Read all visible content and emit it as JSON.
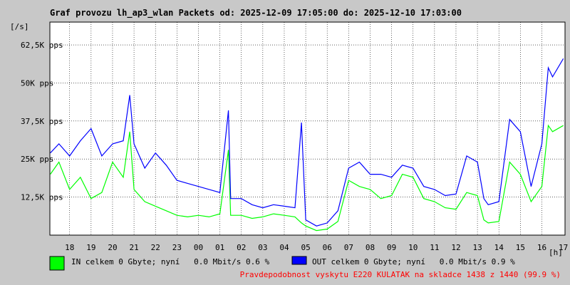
{
  "chart_data": {
    "type": "line",
    "title": "Graf provozu lh_ap3_wlan Packets od: 2025-12-09 17:05:00 do: 2025-12-10 17:03:00",
    "ylabel": "[/s]",
    "xlabel": "[h]",
    "ylim": [
      0,
      70000
    ],
    "grid": true,
    "y_ticks": [
      {
        "value": 12500,
        "label": "12,5K pps"
      },
      {
        "value": 25000,
        "label": "25K pps"
      },
      {
        "value": 37500,
        "label": "37,5K pps"
      },
      {
        "value": 50000,
        "label": "50K pps"
      },
      {
        "value": 62500,
        "label": "62,5K pps"
      }
    ],
    "x_hours": [
      "18",
      "19",
      "20",
      "21",
      "22",
      "23",
      "00",
      "01",
      "02",
      "03",
      "04",
      "05",
      "06",
      "07",
      "08",
      "09",
      "10",
      "11",
      "12",
      "13",
      "14",
      "15",
      "16",
      "17"
    ],
    "series": [
      {
        "name": "IN",
        "color": "#00ff00",
        "x": [
          17.1,
          17.5,
          18.0,
          18.5,
          19.0,
          19.5,
          20.0,
          20.5,
          20.8,
          21.0,
          21.5,
          22.0,
          22.5,
          23.0,
          23.5,
          0.0,
          0.5,
          1.0,
          1.4,
          1.5,
          2.0,
          2.5,
          3.0,
          3.5,
          4.0,
          4.5,
          4.8,
          5.0,
          5.5,
          6.0,
          6.5,
          7.0,
          7.5,
          8.0,
          8.5,
          9.0,
          9.5,
          10.0,
          10.5,
          11.0,
          11.5,
          12.0,
          12.5,
          13.0,
          13.3,
          13.5,
          14.0,
          14.5,
          15.0,
          15.5,
          16.0,
          16.3,
          16.5,
          17.0
        ],
        "y": [
          20000,
          24000,
          15000,
          19000,
          12000,
          14000,
          24000,
          19000,
          34000,
          15000,
          11000,
          9500,
          8000,
          6500,
          6000,
          6500,
          6000,
          7000,
          28000,
          6500,
          6500,
          5500,
          6000,
          7000,
          6500,
          6000,
          4000,
          3000,
          1500,
          2000,
          4500,
          18000,
          16000,
          15000,
          12000,
          13000,
          20000,
          19000,
          12000,
          11000,
          9000,
          8500,
          14000,
          13000,
          5000,
          4000,
          4500,
          24000,
          20000,
          11000,
          16000,
          36000,
          34000,
          36000
        ]
      },
      {
        "name": "OUT",
        "color": "#0000ff",
        "x": [
          17.1,
          17.5,
          18.0,
          18.5,
          19.0,
          19.5,
          20.0,
          20.5,
          20.8,
          21.0,
          21.5,
          22.0,
          22.5,
          23.0,
          23.5,
          0.0,
          0.5,
          1.0,
          1.4,
          1.5,
          2.0,
          2.5,
          3.0,
          3.5,
          4.0,
          4.5,
          4.8,
          5.0,
          5.5,
          6.0,
          6.5,
          7.0,
          7.5,
          8.0,
          8.5,
          9.0,
          9.5,
          10.0,
          10.5,
          11.0,
          11.5,
          12.0,
          12.5,
          13.0,
          13.3,
          13.5,
          14.0,
          14.5,
          15.0,
          15.5,
          16.0,
          16.3,
          16.5,
          17.0
        ],
        "y": [
          27000,
          30000,
          26000,
          31000,
          35000,
          26000,
          30000,
          31000,
          46000,
          30000,
          22000,
          27000,
          23000,
          18000,
          17000,
          16000,
          15000,
          14000,
          41000,
          12000,
          12000,
          10000,
          9000,
          10000,
          9500,
          9000,
          37000,
          5000,
          3000,
          4000,
          8000,
          22000,
          24000,
          20000,
          20000,
          19000,
          23000,
          22000,
          16000,
          15000,
          13000,
          13500,
          26000,
          24000,
          12000,
          10000,
          11000,
          38000,
          34000,
          16000,
          30000,
          55000,
          52000,
          58000
        ]
      }
    ],
    "legend": [
      {
        "color": "#00ff00",
        "text": "IN celkem 0 Gbyte; nyní   0.0 Mbit/s 0.6 %"
      },
      {
        "color": "#0000ff",
        "text": "OUT celkem 0 Gbyte; nyní   0.0 Mbit/s 0.9 %"
      }
    ],
    "footer": "Pravdepodobnost vyskytu E220 KULATAK na skladce 1438 z 1440 (99.9 %)",
    "footer_color": "#ff0000"
  }
}
